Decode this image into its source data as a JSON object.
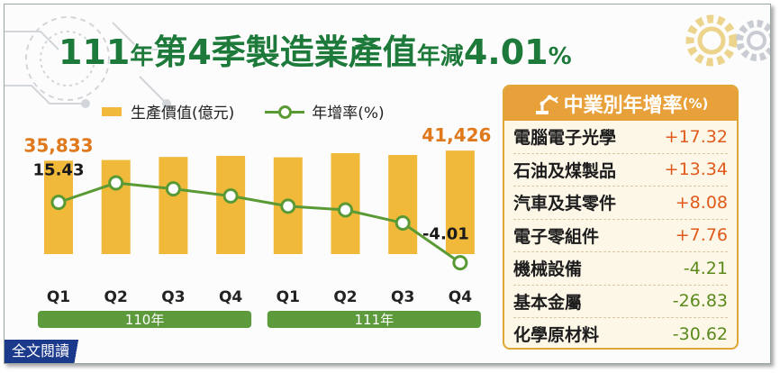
{
  "title": {
    "prefix": "111",
    "y1": "年",
    "mid": "第4季製造業產值",
    "y2": "年減",
    "value": "4.01",
    "unit": "%"
  },
  "legend": {
    "bar_label": "生產價值(億元)",
    "line_label": "年增率(%)"
  },
  "colors": {
    "bar": "#f0b93a",
    "line": "#5a9a34",
    "title": "#1d7a3a",
    "bar_label": "#e0781c",
    "year_band": "#5d9a3c",
    "panel": "#e8a03a",
    "positive": "#e05a1c",
    "negative": "#5a8a1c",
    "fulltext": "#1b3a8c"
  },
  "chart_data": {
    "type": "bar",
    "categories": [
      "Q1",
      "Q2",
      "Q3",
      "Q4",
      "Q1",
      "Q2",
      "Q3",
      "Q4"
    ],
    "year_groups": [
      {
        "label": "110年",
        "count": 4
      },
      {
        "label": "111年",
        "count": 4
      }
    ],
    "series": [
      {
        "name": "生產價值(億元)",
        "type": "bar",
        "values": [
          35833,
          36200,
          37900,
          38500,
          37700,
          40000,
          39000,
          41426
        ],
        "shown_labels": {
          "0": "35,833",
          "7": "41,426"
        }
      },
      {
        "name": "年增率(%)",
        "type": "line",
        "values": [
          15.43,
          21.7,
          19.8,
          17.5,
          14.2,
          13.0,
          8.8,
          -4.01
        ],
        "shown_labels": {
          "0": "15.43",
          "7": "-4.01"
        }
      }
    ],
    "grid": false
  },
  "panel": {
    "title": "中業別年增率",
    "title_unit": "(%)",
    "icon": "robot-arm-icon",
    "rows": [
      {
        "name": "電腦電子光學",
        "value": "+17.32",
        "sign": "pos"
      },
      {
        "name": "石油及煤製品",
        "value": "+13.34",
        "sign": "pos"
      },
      {
        "name": "汽車及其零件",
        "value": "+8.08",
        "sign": "pos"
      },
      {
        "name": "電子零組件",
        "value": "+7.76",
        "sign": "pos"
      },
      {
        "name": "機械設備",
        "value": "-4.21",
        "sign": "neg"
      },
      {
        "name": "基本金屬",
        "value": "-26.83",
        "sign": "neg"
      },
      {
        "name": "化學原材料",
        "value": "-30.62",
        "sign": "neg"
      }
    ]
  },
  "fulltext": {
    "label": "全文閱讀"
  }
}
